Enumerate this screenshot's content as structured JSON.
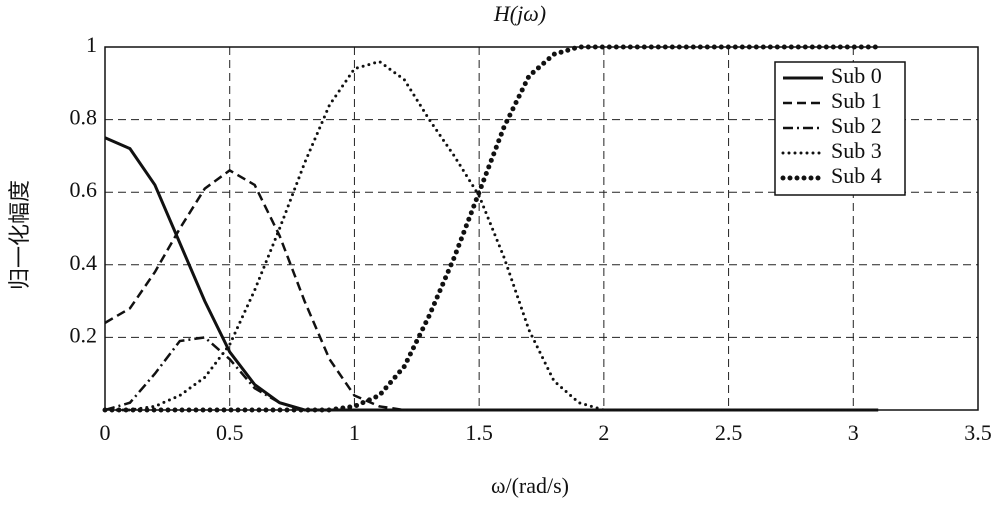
{
  "chart_data": {
    "type": "line",
    "title": "H(jω)",
    "x_label": "ω/(rad/s)",
    "y_label": "归一化幅度",
    "x": [
      0,
      0.1,
      0.2,
      0.3,
      0.4,
      0.5,
      0.6,
      0.7,
      0.8,
      0.9,
      1,
      1.1,
      1.2,
      1.3,
      1.4,
      1.5,
      1.6,
      1.7,
      1.8,
      1.9,
      2,
      2.1,
      2.2,
      2.3,
      2.4,
      2.5,
      2.6,
      2.7,
      2.8,
      2.9,
      3,
      3.1
    ],
    "series": [
      {
        "name": "Sub 0",
        "color": "#111111",
        "linestyle": "solid",
        "values": [
          0.75,
          0.72,
          0.62,
          0.46,
          0.3,
          0.16,
          0.07,
          0.02,
          0,
          0,
          0,
          0,
          0,
          0,
          0,
          0,
          0,
          0,
          0,
          0,
          0,
          0,
          0,
          0,
          0,
          0,
          0,
          0,
          0,
          0,
          0,
          0
        ]
      },
      {
        "name": "Sub 1",
        "color": "#111111",
        "linestyle": "dashed",
        "values": [
          0.24,
          0.28,
          0.38,
          0.5,
          0.61,
          0.66,
          0.62,
          0.48,
          0.3,
          0.14,
          0.04,
          0.01,
          0,
          0,
          0,
          0,
          0,
          0,
          0,
          0,
          0,
          0,
          0,
          0,
          0,
          0,
          0,
          0,
          0,
          0,
          0,
          0
        ]
      },
      {
        "name": "Sub 2",
        "color": "#111111",
        "linestyle": "dashdot",
        "values": [
          0,
          0.02,
          0.1,
          0.19,
          0.2,
          0.14,
          0.06,
          0.02,
          0,
          0,
          0,
          0,
          0,
          0,
          0,
          0,
          0,
          0,
          0,
          0,
          0,
          0,
          0,
          0,
          0,
          0,
          0,
          0,
          0,
          0,
          0,
          0
        ]
      },
      {
        "name": "Sub 3",
        "color": "#111111",
        "linestyle": "dotted",
        "values": [
          0,
          0,
          0.01,
          0.04,
          0.09,
          0.18,
          0.33,
          0.5,
          0.68,
          0.84,
          0.94,
          0.96,
          0.91,
          0.8,
          0.7,
          0.59,
          0.42,
          0.22,
          0.08,
          0.02,
          0,
          0,
          0,
          0,
          0,
          0,
          0,
          0,
          0,
          0,
          0,
          0
        ]
      },
      {
        "name": "Sub 4",
        "color": "#111111",
        "linestyle": "bigdotted",
        "values": [
          0,
          0,
          0,
          0,
          0,
          0,
          0,
          0,
          0,
          0,
          0.01,
          0.04,
          0.12,
          0.26,
          0.42,
          0.6,
          0.78,
          0.92,
          0.98,
          1,
          1,
          1,
          1,
          1,
          1,
          1,
          1,
          1,
          1,
          1,
          1,
          1
        ]
      }
    ],
    "xlim": [
      0,
      3.5
    ],
    "xticks": [
      0,
      0.5,
      1,
      1.5,
      2,
      2.5,
      3,
      3.5
    ],
    "ylim": [
      0,
      1
    ],
    "yticks": [
      0.2,
      0.4,
      0.6,
      0.8,
      1
    ],
    "grid": true,
    "legend": "upper right"
  }
}
